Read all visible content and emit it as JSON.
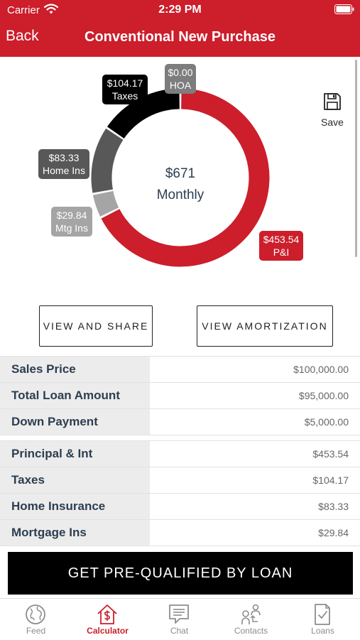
{
  "status_bar": {
    "carrier": "Carrier",
    "time": "2:29 PM"
  },
  "nav": {
    "back_label": "Back",
    "title": "Conventional New Purchase"
  },
  "colors": {
    "brand_red": "#cc1e2b",
    "taxes": "#000000",
    "hoa": "#7d7d7d",
    "home_ins": "#585858",
    "mtg_ins": "#a5a5a5"
  },
  "chart_data": {
    "type": "pie",
    "style": "donut",
    "center_amount": "$671",
    "center_label": "Monthly",
    "slices": [
      {
        "label": "P&I",
        "value": 453.54,
        "value_label": "$453.54",
        "color": "#cc1e2b"
      },
      {
        "label": "Mtg Ins",
        "value": 29.84,
        "value_label": "$29.84",
        "color": "#a5a5a5"
      },
      {
        "label": "Home Ins",
        "value": 83.33,
        "value_label": "$83.33",
        "color": "#585858"
      },
      {
        "label": "Taxes",
        "value": 104.17,
        "value_label": "$104.17",
        "color": "#000000"
      },
      {
        "label": "HOA",
        "value": 0.0,
        "value_label": "$0.00",
        "color": "#7d7d7d"
      }
    ]
  },
  "save": {
    "label": "Save",
    "icon": "floppy-disk-icon"
  },
  "actions": {
    "view_share": "VIEW AND SHARE",
    "view_amortization": "VIEW AMORTIZATION"
  },
  "loan_table": [
    {
      "label": "Sales Price",
      "value": "$100,000.00"
    },
    {
      "label": "Total Loan Amount",
      "value": "$95,000.00"
    },
    {
      "label": "Down Payment",
      "value": "$5,000.00"
    }
  ],
  "payment_table": [
    {
      "label": "Principal & Int",
      "value": "$453.54"
    },
    {
      "label": "Taxes",
      "value": "$104.17"
    },
    {
      "label": "Home Insurance",
      "value": "$83.33"
    },
    {
      "label": "Mortgage Ins",
      "value": "$29.84"
    }
  ],
  "cta": {
    "label": "GET PRE-QUALIFIED BY LOAN"
  },
  "tabs": [
    {
      "label": "Feed",
      "icon": "globe-icon"
    },
    {
      "label": "Calculator",
      "icon": "house-dollar-icon",
      "active": true
    },
    {
      "label": "Chat",
      "icon": "chat-bubble-icon"
    },
    {
      "label": "Contacts",
      "icon": "contacts-icon"
    },
    {
      "label": "Loans",
      "icon": "checklist-document-icon"
    }
  ]
}
